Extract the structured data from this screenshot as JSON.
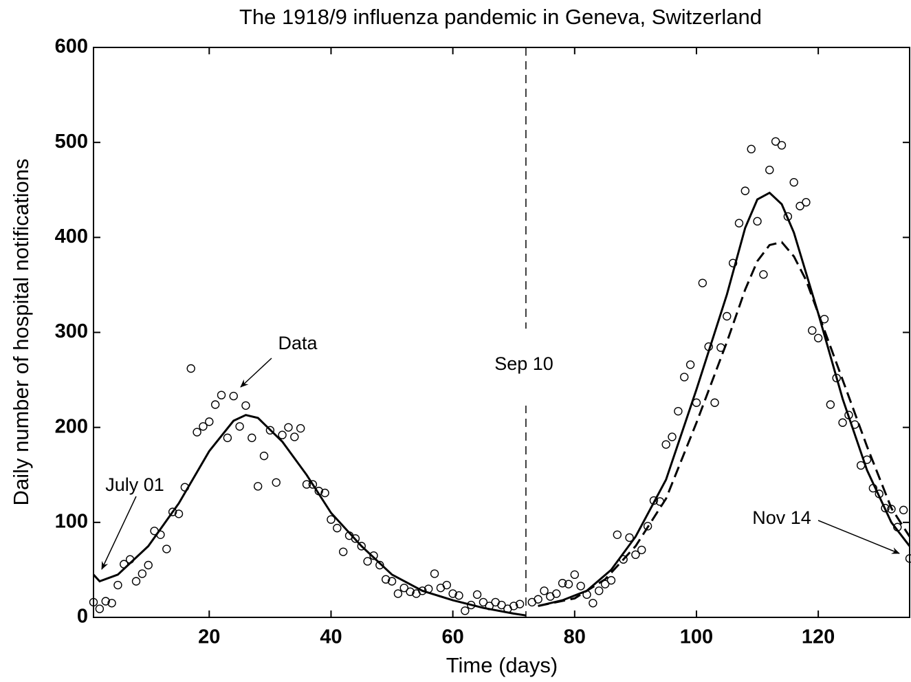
{
  "chart_data": {
    "type": "scatter",
    "title": "The 1918/9 influenza pandemic in Geneva, Switzerland",
    "x_label": "Time (days)",
    "y_label": "Daily number of hospital notifications",
    "xlim": [
      1,
      135
    ],
    "ylim": [
      0,
      600
    ],
    "xticks": [
      20,
      40,
      60,
      80,
      100,
      120
    ],
    "yticks": [
      0,
      100,
      200,
      300,
      400,
      500,
      600
    ],
    "color": "#000000",
    "points": {
      "x": [
        1,
        2,
        3,
        4,
        5,
        6,
        7,
        8,
        9,
        10,
        11,
        12,
        13,
        14,
        15,
        16,
        17,
        18,
        19,
        20,
        21,
        22,
        23,
        24,
        25,
        26,
        27,
        28,
        29,
        30,
        31,
        32,
        33,
        34,
        35,
        36,
        37,
        38,
        39,
        40,
        41,
        42,
        43,
        44,
        45,
        46,
        47,
        48,
        49,
        50,
        51,
        52,
        53,
        54,
        55,
        56,
        57,
        58,
        59,
        60,
        61,
        62,
        63,
        64,
        65,
        66,
        67,
        68,
        69,
        70,
        71,
        73,
        74,
        75,
        76,
        77,
        78,
        79,
        80,
        81,
        82,
        83,
        84,
        85,
        86,
        87,
        88,
        89,
        90,
        91,
        92,
        93,
        94,
        95,
        96,
        97,
        98,
        99,
        100,
        101,
        102,
        103,
        104,
        105,
        106,
        107,
        108,
        109,
        110,
        111,
        112,
        113,
        114,
        115,
        116,
        117,
        118,
        119,
        120,
        121,
        122,
        123,
        124,
        125,
        126,
        127,
        128,
        129,
        130,
        131,
        132,
        133,
        134,
        135
      ],
      "values": [
        16,
        9,
        17,
        15,
        34,
        56,
        61,
        38,
        46,
        55,
        91,
        87,
        72,
        111,
        109,
        137,
        262,
        195,
        201,
        206,
        224,
        234,
        189,
        233,
        201,
        223,
        189,
        138,
        170,
        197,
        142,
        192,
        200,
        190,
        199,
        140,
        140,
        133,
        131,
        103,
        94,
        69,
        86,
        83,
        75,
        59,
        65,
        55,
        40,
        38,
        25,
        31,
        27,
        25,
        28,
        30,
        46,
        31,
        34,
        25,
        23,
        7,
        13,
        24,
        16,
        12,
        16,
        13,
        9,
        12,
        14,
        16,
        19,
        28,
        22,
        25,
        36,
        35,
        45,
        33,
        24,
        15,
        28,
        35,
        39,
        87,
        61,
        84,
        66,
        71,
        96,
        123,
        122,
        182,
        190,
        217,
        253,
        266,
        226,
        352,
        285,
        226,
        284,
        317,
        373,
        415,
        449,
        493,
        417,
        361,
        471,
        501,
        497,
        422,
        458,
        433,
        437,
        302,
        294,
        314,
        224,
        252,
        205,
        213,
        203,
        160,
        166,
        136,
        130,
        115,
        114,
        95,
        113,
        62
      ]
    },
    "curves": [
      {
        "dashed": false,
        "x": [
          1,
          2,
          5,
          10,
          15,
          20,
          24,
          26,
          28,
          32,
          36,
          40,
          45,
          50,
          55,
          60,
          65,
          70,
          72
        ],
        "values": [
          45,
          38,
          45,
          75,
          120,
          175,
          207,
          213,
          210,
          185,
          150,
          110,
          75,
          45,
          28,
          18,
          10,
          4,
          2
        ]
      },
      {
        "dashed": false,
        "x": [
          74,
          78,
          82,
          86,
          90,
          95,
          100,
          105,
          108,
          110,
          112,
          114,
          116,
          120,
          124,
          128,
          132,
          135
        ],
        "values": [
          12,
          18,
          28,
          50,
          85,
          145,
          240,
          340,
          410,
          440,
          447,
          435,
          405,
          320,
          230,
          155,
          100,
          75
        ]
      },
      {
        "dashed": true,
        "x": [
          74,
          80,
          85,
          90,
          95,
          100,
          105,
          108,
          110,
          112,
          114,
          116,
          118,
          120,
          124,
          128,
          132,
          135
        ],
        "values": [
          12,
          20,
          40,
          75,
          125,
          205,
          290,
          345,
          375,
          392,
          395,
          380,
          355,
          320,
          250,
          180,
          115,
          85
        ]
      }
    ],
    "vline": 72,
    "annotations": [
      {
        "text": "Data"
      },
      {
        "text": "July 01"
      },
      {
        "text": "Sep 10"
      },
      {
        "text": "Nov 14"
      }
    ]
  }
}
